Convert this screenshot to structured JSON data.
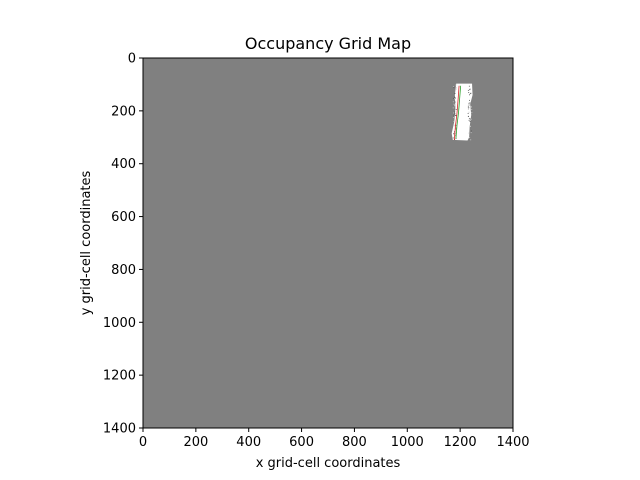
{
  "chart_data": {
    "type": "heatmap",
    "title": "Occupancy Grid Map",
    "xlabel": "x grid-cell coordinates",
    "ylabel": "y grid-cell coordinates",
    "xlim": [
      0,
      1400
    ],
    "ylim": [
      1400,
      0
    ],
    "x_ticks": [
      "0",
      "200",
      "400",
      "600",
      "800",
      "1000",
      "1200",
      "1400"
    ],
    "y_ticks": [
      "0",
      "200",
      "400",
      "600",
      "800",
      "1000",
      "1200",
      "1400"
    ],
    "grid": false,
    "legend": "none",
    "colors": {
      "unknown": "#808080",
      "free": "#ffffff",
      "occupied": "#000000",
      "trajectory_red": "#d62728",
      "trajectory_green": "#2ca02c"
    },
    "free_region": {
      "polygon": [
        [
          1185,
          97
        ],
        [
          1245,
          97
        ],
        [
          1247,
          140
        ],
        [
          1238,
          175
        ],
        [
          1242,
          215
        ],
        [
          1236,
          260
        ],
        [
          1234,
          300
        ],
        [
          1228,
          312
        ],
        [
          1172,
          310
        ],
        [
          1168,
          285
        ],
        [
          1178,
          240
        ],
        [
          1182,
          190
        ],
        [
          1180,
          140
        ]
      ]
    },
    "trajectories": [
      {
        "color": "#d62728",
        "points": [
          [
            1178,
            310
          ],
          [
            1182,
            260
          ],
          [
            1188,
            210
          ],
          [
            1192,
            160
          ],
          [
            1196,
            105
          ]
        ]
      },
      {
        "color": "#2ca02c",
        "points": [
          [
            1184,
            305
          ],
          [
            1188,
            255
          ],
          [
            1194,
            205
          ],
          [
            1198,
            155
          ],
          [
            1202,
            105
          ]
        ]
      }
    ]
  }
}
